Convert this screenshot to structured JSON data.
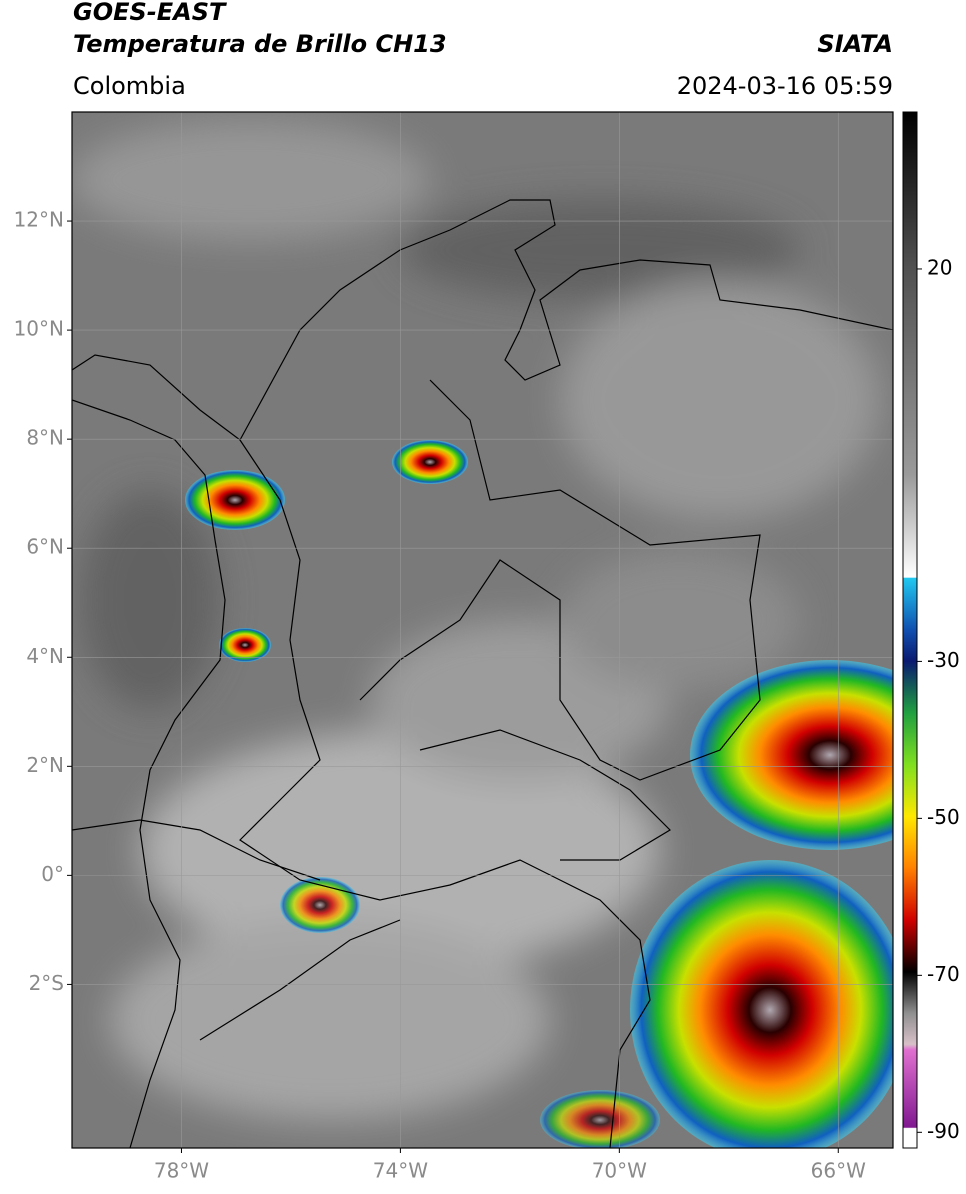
{
  "header": {
    "title": "GOES-EAST",
    "subtitle": "Temperatura de Brillo CH13",
    "source": "SIATA",
    "region": "Colombia",
    "datetime": "2024-03-16 05:59"
  },
  "map": {
    "xlim": [
      -80,
      -65
    ],
    "ylim": [
      -5,
      14
    ],
    "lat_ticks": [
      {
        "value": 12,
        "label": "12°N"
      },
      {
        "value": 10,
        "label": "10°N"
      },
      {
        "value": 8,
        "label": "8°N"
      },
      {
        "value": 6,
        "label": "6°N"
      },
      {
        "value": 4,
        "label": "4°N"
      },
      {
        "value": 2,
        "label": "2°N"
      },
      {
        "value": 0,
        "label": "0°"
      },
      {
        "value": -2,
        "label": "2°S"
      }
    ],
    "lon_ticks": [
      {
        "value": -78,
        "label": "78°W"
      },
      {
        "value": -74,
        "label": "74°W"
      },
      {
        "value": -70,
        "label": "70°W"
      },
      {
        "value": -66,
        "label": "66°W"
      }
    ]
  },
  "colorbar": {
    "lim": [
      -92,
      40
    ],
    "ticks": [
      20,
      -30,
      -50,
      -70,
      -90
    ]
  }
}
